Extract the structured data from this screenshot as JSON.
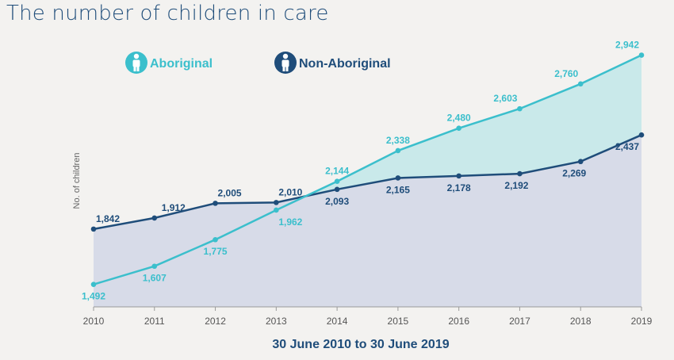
{
  "title": "The number of children in care",
  "colors": {
    "aboriginal": "#3bbfcc",
    "non_aboriginal": "#1f4d7a",
    "aboriginal_fill": "#c9e9ea",
    "non_aboriginal_fill": "#d7dbe8"
  },
  "legend": {
    "aboriginal": "Aboriginal",
    "non_aboriginal": "Non-Aboriginal",
    "icon": "child-icon",
    "position": "top-left"
  },
  "chart_data": {
    "type": "area",
    "title": "The number of children in care",
    "xlabel": "30 June 2010 to 30 June 2019",
    "ylabel": "No. of children",
    "x": [
      "2010",
      "2011",
      "2012",
      "2013",
      "2014",
      "2015",
      "2016",
      "2017",
      "2018",
      "2019"
    ],
    "ylim": [
      1350,
      3080
    ],
    "grid": false,
    "series": [
      {
        "name": "Aboriginal",
        "values": [
          1492,
          1607,
          1775,
          1962,
          2144,
          2338,
          2480,
          2603,
          2760,
          2942
        ],
        "labels": [
          "1,492",
          "1,607",
          "1,775",
          "1,962",
          "2,144",
          "2,338",
          "2,480",
          "2,603",
          "2,760",
          "2,942"
        ]
      },
      {
        "name": "Non-Aboriginal",
        "values": [
          1842,
          1912,
          2005,
          2010,
          2093,
          2165,
          2178,
          2192,
          2269,
          2437
        ],
        "labels": [
          "1,842",
          "1,912",
          "2,005",
          "2,010",
          "2,093",
          "2,165",
          "2,178",
          "2,192",
          "2,269",
          "2,437"
        ]
      }
    ]
  }
}
